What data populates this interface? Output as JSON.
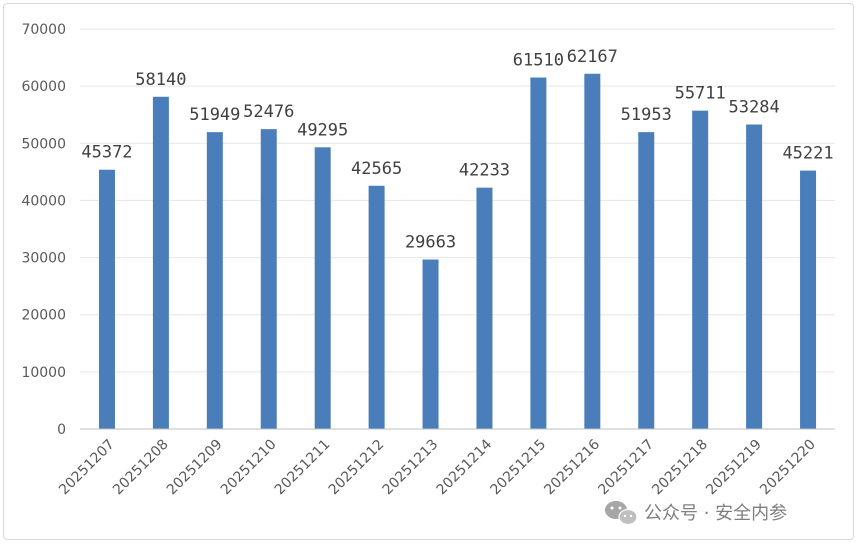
{
  "chart_data": {
    "type": "bar",
    "categories": [
      "20251207",
      "20251208",
      "20251209",
      "20251210",
      "20251211",
      "20251212",
      "20251213",
      "20251214",
      "20251215",
      "20251216",
      "20251217",
      "20251218",
      "20251219",
      "20251220"
    ],
    "values": [
      45372,
      58140,
      51949,
      52476,
      49295,
      42565,
      29663,
      42233,
      61510,
      62167,
      51953,
      55711,
      53284,
      45221
    ],
    "ylim": [
      0,
      70000
    ],
    "yticks": [
      0,
      10000,
      20000,
      30000,
      40000,
      50000,
      60000,
      70000
    ],
    "grid": true,
    "bar_color": "#4a7ebb",
    "data_labels": true
  },
  "watermark": {
    "icon": "wechat-icon",
    "text": "公众号 · 安全内参"
  }
}
